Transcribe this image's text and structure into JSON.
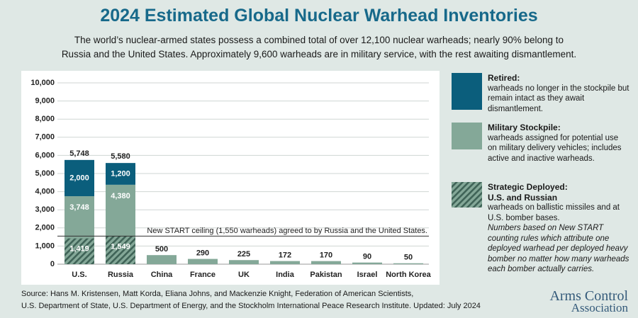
{
  "chart_data": {
    "type": "stacked-bar",
    "title": "2024 Estimated Global Nuclear Warhead Inventories",
    "subtitle": [
      "The world’s nuclear-armed states possess a combined total of over 12,100 nuclear warheads; nearly 90% belong to",
      "Russia and the United States. Approximately 9,600 warheads are in military service, with the rest awaiting dismantlement."
    ],
    "categories": [
      "U.S.",
      "Russia",
      "China",
      "France",
      "UK",
      "India",
      "Pakistan",
      "Israel",
      "North Korea"
    ],
    "series": [
      {
        "name": "Military Stockpile:",
        "description": "warheads assigned for potential use on military delivery vehicles; includes active and inactive warheads.",
        "color": "#84a898",
        "values": [
          3748,
          4380,
          500,
          290,
          225,
          172,
          170,
          90,
          50
        ],
        "value_labels": [
          "3,748",
          "4,380",
          "500",
          "290",
          "225",
          "172",
          "170",
          "90",
          "50"
        ]
      },
      {
        "name": "Retired:",
        "description": "warheads no longer in the stockpile but remain intact as they await dismantlement.",
        "color": "#0b5e7c",
        "values": [
          2000,
          1200,
          null,
          null,
          null,
          null,
          null,
          null,
          null
        ],
        "value_labels": [
          "2,000",
          "1,200",
          null,
          null,
          null,
          null,
          null,
          null,
          null
        ]
      }
    ],
    "deployed": {
      "name": "Strategic Deployed: U.S. and Russian",
      "description": "warheads on ballistic missiles and at U.S. bomber bases.",
      "note": "Numbers based on New START counting rules which attribute one deployed warhead per deployed heavy bomber no matter how many warheads each bomber actually carries.",
      "color": "#3f6357",
      "values": [
        1419,
        1549,
        null,
        null,
        null,
        null,
        null,
        null,
        null
      ],
      "value_labels": [
        "1,419",
        "1,549",
        null,
        null,
        null,
        null,
        null,
        null,
        null
      ]
    },
    "totals": {
      "values": [
        5748,
        5580,
        null,
        null,
        null,
        null,
        null,
        null,
        null
      ],
      "value_labels": [
        "5,748",
        "5,580",
        null,
        null,
        null,
        null,
        null,
        null,
        null
      ]
    },
    "reference_line": {
      "value": 1550,
      "label": "New START ceiling (1,550 warheads) agreed to by Russia and the United States."
    },
    "ylim": [
      0,
      10000
    ],
    "yticks": [
      0,
      {
        "value": 1000,
        "label": "1,000"
      },
      {
        "value": 2000,
        "label": "2,000"
      },
      {
        "value": 3000,
        "label": "3,000"
      },
      {
        "value": 4000,
        "label": "4,000"
      },
      {
        "value": 5000,
        "label": "5,000"
      },
      {
        "value": 6000,
        "label": "6,000"
      },
      {
        "value": 7000,
        "label": "7,000"
      },
      {
        "value": 8000,
        "label": "8,000"
      },
      {
        "value": 9000,
        "label": "9,000"
      },
      {
        "value": 10000,
        "label": "10,000"
      }
    ],
    "grid": true,
    "source": [
      "Source: Hans M. Kristensen, Matt Korda, Eliana Johns, and Mackenzie Knight, Federation of American Scientists,",
      "U.S. Department of State, U.S. Department of Energy, and the Stockholm International Peace Research Institute. Updated: July 2024"
    ],
    "logo": [
      "Arms Control",
      "Association"
    ]
  }
}
